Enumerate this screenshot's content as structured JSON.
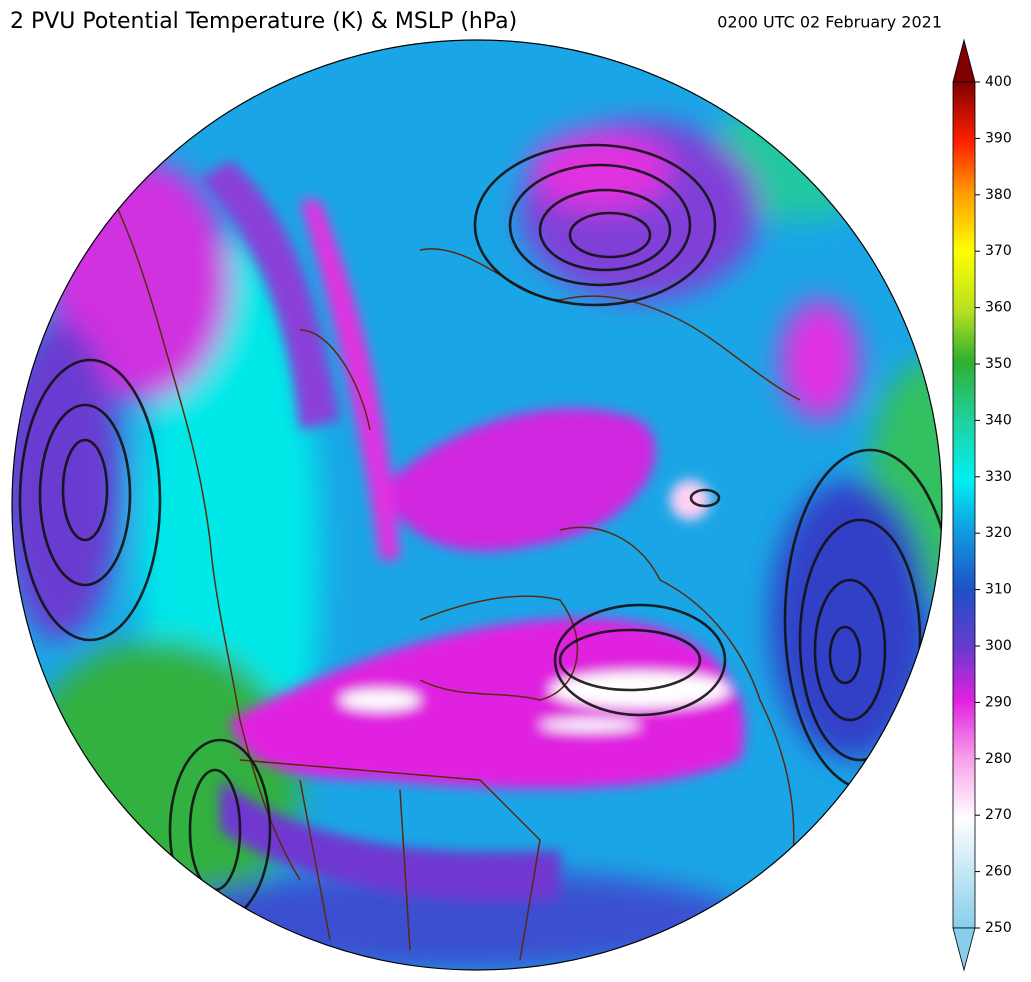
{
  "title": "2 PVU Potential Temperature (K) & MSLP (hPa)",
  "timestamp": "0200 UTC 02 February 2021",
  "colorbar": {
    "range": [
      250,
      400
    ],
    "ticks": [
      250,
      260,
      270,
      280,
      290,
      300,
      310,
      320,
      330,
      340,
      350,
      360,
      370,
      380,
      390,
      400
    ]
  }
}
